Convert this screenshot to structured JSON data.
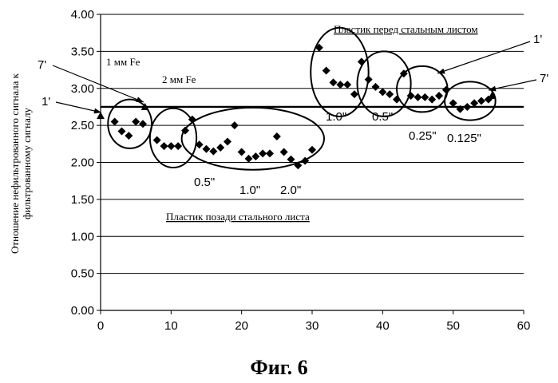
{
  "chart_data": {
    "type": "scatter",
    "ylabel": "Отношение  нефильтрованного сигнала к фильтрованному сигналу",
    "xlim": [
      0,
      60
    ],
    "ylim": [
      0,
      4
    ],
    "x_ticks": [
      0,
      10,
      20,
      30,
      40,
      50,
      60
    ],
    "y_ticks": [
      "0.00",
      "0.50",
      "1.00",
      "1.50",
      "2.00",
      "2.50",
      "3.00",
      "3.50",
      "4.00"
    ],
    "grid": true,
    "reference_lines": [
      2.75
    ],
    "series": [
      {
        "marker": "diamond",
        "x": [
          2,
          3,
          4,
          5,
          6,
          8,
          9,
          10,
          11,
          12,
          13,
          14,
          15,
          16,
          17,
          18,
          19,
          20,
          21,
          22,
          23,
          24,
          25,
          26,
          27,
          28,
          29,
          30,
          31,
          32,
          33,
          34,
          35,
          36,
          37,
          38,
          39,
          40,
          41,
          42,
          43,
          44,
          45,
          46,
          47,
          48,
          49,
          50,
          51,
          52,
          53,
          54,
          55
        ],
        "y": [
          2.55,
          2.42,
          2.36,
          2.55,
          2.52,
          2.3,
          2.22,
          2.22,
          2.22,
          2.43,
          2.58,
          2.24,
          2.18,
          2.15,
          2.2,
          2.28,
          2.5,
          2.14,
          2.05,
          2.08,
          2.12,
          2.12,
          2.35,
          2.14,
          2.04,
          1.96,
          2.02,
          2.17,
          3.55,
          3.24,
          3.08,
          3.05,
          3.05,
          2.92,
          3.36,
          3.12,
          3.02,
          2.95,
          2.92,
          2.85,
          3.2,
          2.9,
          2.88,
          2.88,
          2.85,
          2.9,
          2.98,
          2.8,
          2.72,
          2.75,
          2.8,
          2.83,
          2.85
        ]
      },
      {
        "marker": "triangle",
        "x": [
          0,
          6.3,
          55.5
        ],
        "y": [
          2.63,
          2.75,
          2.9
        ]
      }
    ],
    "annotations": {
      "fe1": "1 мм Fe",
      "fe2": "2 мм Fe",
      "left_7": "7'",
      "left_1": "1'",
      "right_1": "1'",
      "right_7": "7'",
      "top_label": "Пластик перед стальным листом",
      "bottom_label": "Пластик позади стального листа",
      "lower_sizes": [
        "0.5\"",
        "1.0\"",
        "2.0\""
      ],
      "upper_sizes": [
        "1.0\"",
        "0.5\"",
        "0.25\"",
        "0.125\""
      ]
    }
  },
  "caption": "Фиг. 6"
}
